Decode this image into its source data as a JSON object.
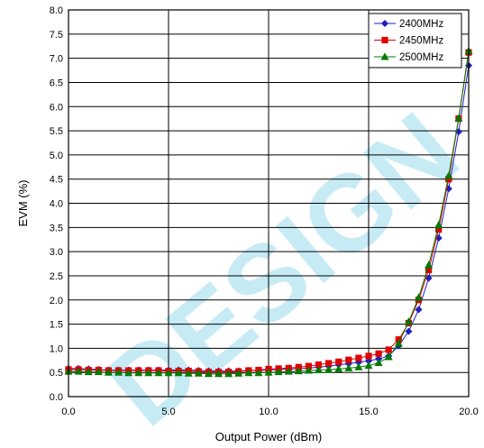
{
  "chart_data": {
    "type": "line",
    "xlabel": "Output Power (dBm)",
    "ylabel": "EVM (%)",
    "xlim": [
      0,
      20
    ],
    "ylim": [
      0,
      8
    ],
    "x_ticks": [
      "0.0",
      "5.0",
      "10.0",
      "15.0",
      "20.0"
    ],
    "y_ticks": [
      "0.0",
      "0.5",
      "1.0",
      "1.5",
      "2.0",
      "2.5",
      "3.0",
      "3.5",
      "4.0",
      "4.5",
      "5.0",
      "5.5",
      "6.0",
      "6.5",
      "7.0",
      "7.5",
      "8.0"
    ],
    "grid": true,
    "legend_position": "top-right",
    "x": [
      0,
      0.5,
      1,
      1.5,
      2,
      2.5,
      3,
      3.5,
      4,
      4.5,
      5,
      5.5,
      6,
      6.5,
      7,
      7.5,
      8,
      8.5,
      9,
      9.5,
      10,
      10.5,
      11,
      11.5,
      12,
      12.5,
      13,
      13.5,
      14,
      14.5,
      15,
      15.5,
      16,
      16.5,
      17,
      17.5,
      18,
      18.5,
      19,
      19.5,
      20
    ],
    "series": [
      {
        "name": "2400MHz",
        "color": "#2020c0",
        "marker": "diamond",
        "values": [
          0.58,
          0.58,
          0.57,
          0.56,
          0.55,
          0.55,
          0.55,
          0.55,
          0.55,
          0.55,
          0.55,
          0.55,
          0.55,
          0.54,
          0.53,
          0.53,
          0.53,
          0.53,
          0.54,
          0.54,
          0.55,
          0.56,
          0.57,
          0.58,
          0.59,
          0.61,
          0.63,
          0.66,
          0.68,
          0.71,
          0.74,
          0.78,
          0.84,
          1.05,
          1.35,
          1.8,
          2.45,
          3.28,
          4.3,
          5.48,
          6.85
        ]
      },
      {
        "name": "2450MHz",
        "color": "#e00000",
        "marker": "square",
        "values": [
          0.56,
          0.56,
          0.55,
          0.55,
          0.54,
          0.54,
          0.54,
          0.54,
          0.54,
          0.54,
          0.53,
          0.53,
          0.53,
          0.52,
          0.51,
          0.51,
          0.51,
          0.52,
          0.54,
          0.55,
          0.57,
          0.58,
          0.59,
          0.61,
          0.63,
          0.66,
          0.69,
          0.72,
          0.76,
          0.8,
          0.84,
          0.89,
          0.97,
          1.18,
          1.52,
          2.0,
          2.62,
          3.46,
          4.5,
          5.75,
          7.12
        ]
      },
      {
        "name": "2500MHz",
        "color": "#007a00",
        "marker": "triangle",
        "values": [
          0.52,
          0.52,
          0.51,
          0.51,
          0.5,
          0.5,
          0.49,
          0.49,
          0.49,
          0.49,
          0.49,
          0.49,
          0.48,
          0.48,
          0.47,
          0.47,
          0.47,
          0.48,
          0.49,
          0.49,
          0.5,
          0.51,
          0.52,
          0.53,
          0.54,
          0.55,
          0.56,
          0.57,
          0.59,
          0.61,
          0.64,
          0.7,
          0.82,
          1.1,
          1.55,
          2.05,
          2.72,
          3.55,
          4.57,
          5.76,
          7.15
        ]
      }
    ]
  },
  "watermark": {
    "text": "DESIGN",
    "color": "#00a6d6"
  }
}
